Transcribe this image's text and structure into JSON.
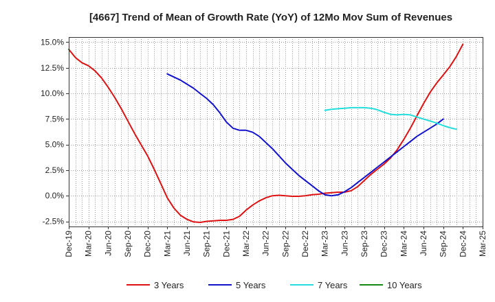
{
  "chart_data": {
    "type": "line",
    "title": "[4667]  Trend of Mean of Growth Rate (YoY) of 12Mo Mov Sum of Revenues",
    "ylim": [
      -3.0,
      15.5
    ],
    "yticks": [
      -2.5,
      0.0,
      2.5,
      5.0,
      7.5,
      10.0,
      12.5,
      15.0
    ],
    "ytick_labels": [
      "-2.5%",
      "0.0%",
      "2.5%",
      "5.0%",
      "7.5%",
      "10.0%",
      "12.5%",
      "15.0%"
    ],
    "x_start": "Dec-19",
    "x_months": 63,
    "xtick_labels": [
      "Dec-19",
      "Mar-20",
      "Jun-20",
      "Sep-20",
      "Dec-20",
      "Mar-21",
      "Jun-21",
      "Sep-21",
      "Dec-21",
      "Mar-22",
      "Jun-22",
      "Sep-22",
      "Dec-22",
      "Mar-23",
      "Jun-23",
      "Sep-23",
      "Dec-23",
      "Mar-24",
      "Jun-24",
      "Sep-24",
      "Dec-24",
      "Mar-25"
    ],
    "grid": true,
    "legend_position": "bottom",
    "series": [
      {
        "name": "3 Years",
        "color": "#dd1111",
        "start_index": 0,
        "values": [
          14.3,
          13.5,
          13.0,
          12.7,
          12.2,
          11.5,
          10.6,
          9.6,
          8.5,
          7.3,
          6.1,
          5.0,
          3.9,
          2.6,
          1.2,
          -0.2,
          -1.2,
          -1.9,
          -2.3,
          -2.55,
          -2.6,
          -2.5,
          -2.45,
          -2.4,
          -2.4,
          -2.3,
          -2.0,
          -1.4,
          -0.9,
          -0.5,
          -0.2,
          0.0,
          0.05,
          0.0,
          -0.05,
          -0.05,
          0.0,
          0.1,
          0.15,
          0.25,
          0.3,
          0.35,
          0.35,
          0.5,
          0.9,
          1.5,
          2.1,
          2.6,
          3.1,
          3.7,
          4.5,
          5.5,
          6.6,
          7.8,
          9.0,
          10.1,
          11.0,
          11.8,
          12.6,
          13.6,
          14.8
        ]
      },
      {
        "name": "5 Years",
        "color": "#1111cc",
        "start_index": 15,
        "values": [
          11.9,
          11.6,
          11.3,
          10.9,
          10.5,
          10.0,
          9.5,
          8.9,
          8.1,
          7.2,
          6.6,
          6.4,
          6.4,
          6.2,
          5.8,
          5.2,
          4.6,
          3.9,
          3.2,
          2.6,
          2.0,
          1.5,
          1.0,
          0.5,
          0.1,
          0.0,
          0.1,
          0.4,
          0.8,
          1.3,
          1.8,
          2.3,
          2.8,
          3.3,
          3.8,
          4.3,
          4.8,
          5.3,
          5.8,
          6.2,
          6.6,
          7.0,
          7.5
        ]
      },
      {
        "name": "7 Years",
        "color": "#22dddd",
        "start_index": 39,
        "values": [
          8.35,
          8.45,
          8.5,
          8.55,
          8.6,
          8.6,
          8.6,
          8.55,
          8.4,
          8.15,
          7.95,
          7.9,
          7.95,
          7.9,
          7.7,
          7.5,
          7.3,
          7.1,
          6.85,
          6.65,
          6.5
        ]
      },
      {
        "name": "10 Years",
        "color": "#118811",
        "start_index": 0,
        "values": []
      }
    ]
  }
}
